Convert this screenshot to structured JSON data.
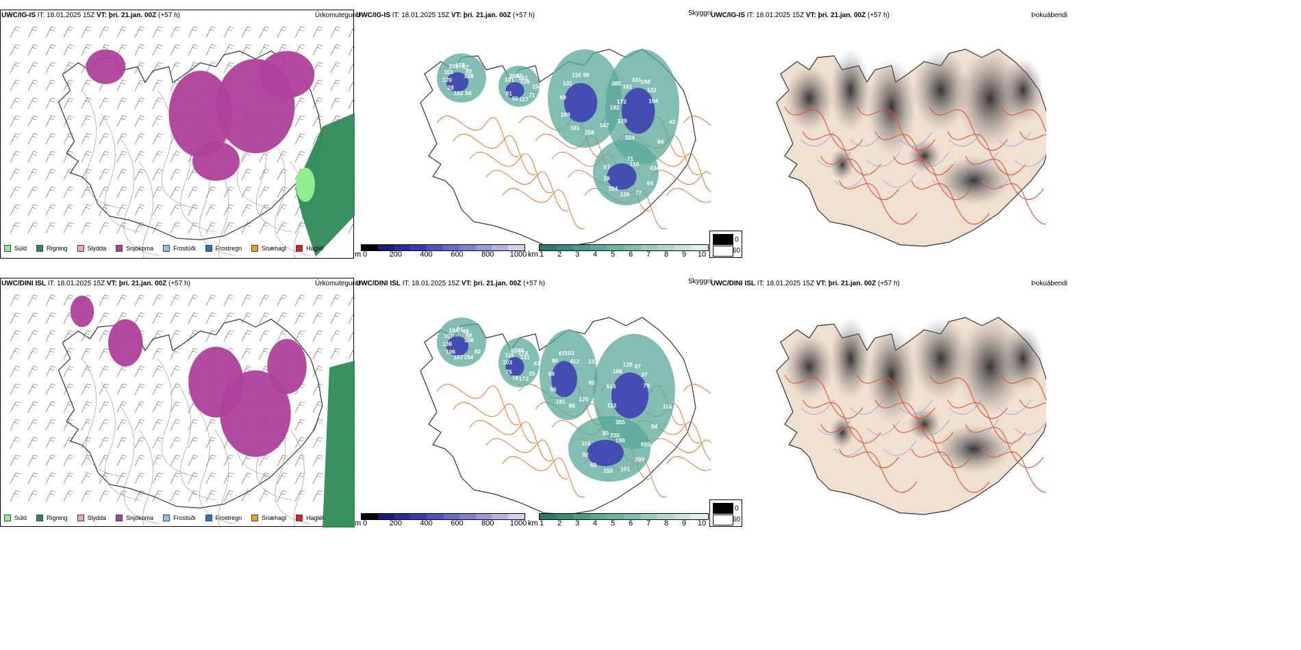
{
  "rows": [
    {
      "model": "UWC/IG-IS",
      "it_label": "IT: 18.01.2025 15Z",
      "vt_label": "VT: þri. 21.jan. 00Z",
      "offset": "(+57 h)",
      "panel1_title": "Úrkomutegund",
      "panel2_title": "Skyggni",
      "panel3_title": "Þokuábendi",
      "visibility_values": [
        "108",
        "81",
        "99",
        "84",
        "67",
        "80",
        "95",
        "116",
        "43",
        "18",
        "67",
        "117",
        "101",
        "104",
        "104",
        "118",
        "71",
        "69",
        "122",
        "139",
        "235",
        "154",
        "189",
        "198",
        "77",
        "101",
        "226",
        "181",
        "181",
        "64",
        "120",
        "161",
        "258",
        "101",
        "434",
        "28",
        "82",
        "147",
        "172",
        "116",
        "102",
        "280",
        "182",
        "129",
        "71",
        "58",
        "181",
        "385",
        "324"
      ],
      "accent_hint": "IG-IS"
    },
    {
      "model": "UWC/DINI ISL",
      "it_label": "IT: 18.01.2025 15Z",
      "vt_label": "VT: þri. 21.jan. 00Z",
      "offset": "(+57 h)",
      "panel1_title": "Úrkomutegund",
      "panel2_title": "Skyggni",
      "panel3_title": "Þokuábendi",
      "visibility_values": [
        "106",
        "75",
        "103",
        "94",
        "115",
        "88",
        "78",
        "67",
        "116",
        "92",
        "98",
        "172",
        "94",
        "79",
        "62",
        "91",
        "25",
        "69",
        "37",
        "159",
        "194",
        "43",
        "56",
        "87",
        "101",
        "107",
        "131",
        "191",
        "128",
        "299",
        "136",
        "174",
        "85",
        "166",
        "595",
        "106",
        "186",
        "120",
        "615",
        "198",
        "157",
        "93",
        "95",
        "113",
        "230",
        "154",
        "116",
        "133",
        "355",
        "85",
        "82",
        "103",
        "412"
      ],
      "accent_hint": "DINI"
    }
  ],
  "precip_legend": [
    {
      "label": "Súld",
      "color": "#90ee90"
    },
    {
      "label": "Rigning",
      "color": "#2e8b57"
    },
    {
      "label": "Slydda",
      "color": "#f0a0d0"
    },
    {
      "label": "Snjókoma",
      "color": "#b0409a"
    },
    {
      "label": "Frostúði",
      "color": "#90c0f0"
    },
    {
      "label": "Frostregn",
      "color": "#3070c0"
    },
    {
      "label": "Snæhagl",
      "color": "#f0a020"
    },
    {
      "label": "Haglél",
      "color": "#e02020"
    }
  ],
  "height_bar": {
    "unit": "m",
    "ticks": [
      "0",
      "200",
      "400",
      "600",
      "800",
      "1000"
    ],
    "colors": [
      "#000000",
      "#1a1a7a",
      "#2a2a9a",
      "#3a3ab0",
      "#5050c0",
      "#6a6ac8",
      "#8080d0",
      "#9a9ad8",
      "#b4b4e0",
      "#d0d0ec"
    ]
  },
  "km_bar": {
    "unit": "km",
    "ticks": [
      "1",
      "2",
      "3",
      "4",
      "5",
      "6",
      "7",
      "8",
      "9",
      "10"
    ],
    "colors": [
      "#2a7a6a",
      "#3a8a7a",
      "#4a9a8a",
      "#5aa898",
      "#6ab4a4",
      "#80c0b0",
      "#98ccbe",
      "#b0d8cc",
      "#c8e4da",
      "#e0f0ea"
    ]
  },
  "fog_legend": {
    "top_value": "0",
    "bottom_value": "60"
  },
  "colors": {
    "snow": "#b0409a",
    "rain": "#2e8b57",
    "drizzle": "#90ee90",
    "sleet": "#f0a0d0",
    "road": "#e87020",
    "land": "#f0e0d0",
    "vis_teal": "#5aa898",
    "vis_blue": "#3a3ab0"
  }
}
